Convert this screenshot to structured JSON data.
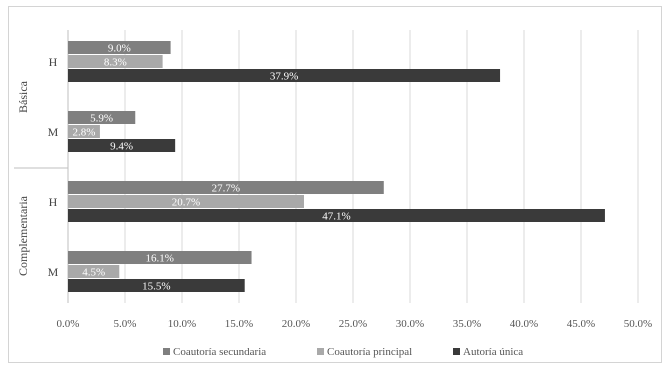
{
  "chart_data": {
    "type": "bar",
    "orientation": "horizontal",
    "groups": [
      {
        "label": "Básica",
        "categories": [
          "H",
          "M"
        ]
      },
      {
        "label": "Complementaria",
        "categories": [
          "H",
          "M"
        ]
      }
    ],
    "categories": [
      "Básica H",
      "Básica M",
      "Complementaria H",
      "Complementaria M"
    ],
    "series": [
      {
        "name": "Coautoría secundaria",
        "color": "#7f7f7f",
        "values": [
          9.0,
          5.9,
          27.7,
          16.1
        ],
        "labels": [
          "9.0%",
          "5.9%",
          "27.7%",
          "16.1%"
        ]
      },
      {
        "name": "Coautoría principal",
        "color": "#a9a9a9",
        "values": [
          8.3,
          2.8,
          20.7,
          4.5
        ],
        "labels": [
          "8.3%",
          "2.8%",
          "20.7%",
          "4.5%"
        ]
      },
      {
        "name": "Autoría única",
        "color": "#3a3a3a",
        "values": [
          37.9,
          9.4,
          47.1,
          15.5
        ],
        "labels": [
          "37.9%",
          "9.4%",
          "47.1%",
          "15.5%"
        ]
      }
    ],
    "xlim": [
      0,
      50
    ],
    "x_ticks": [
      "0.0%",
      "5.0%",
      "10.0%",
      "15.0%",
      "20.0%",
      "25.0%",
      "30.0%",
      "35.0%",
      "40.0%",
      "45.0%",
      "50.0%"
    ],
    "grid": true,
    "legend_position": "bottom",
    "title": "",
    "xlabel": "",
    "ylabel": ""
  }
}
